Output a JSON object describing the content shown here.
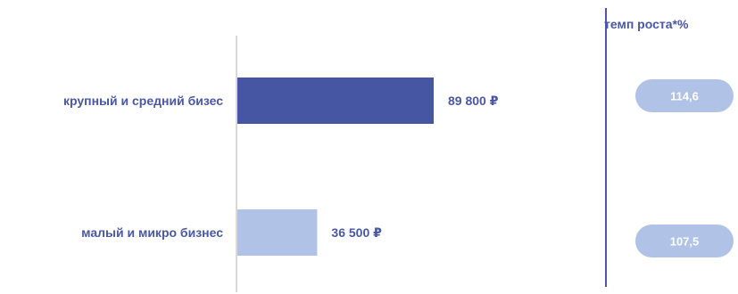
{
  "chart_data": {
    "type": "bar",
    "orientation": "horizontal",
    "categories": [
      "крупный и средний бизес",
      "малый и микро бизнес"
    ],
    "values": [
      89800,
      36500
    ],
    "value_labels": [
      "89 800 ₽",
      "36 500 ₽"
    ],
    "xlim": [
      0,
      100000
    ],
    "grid": false,
    "growth": {
      "header": "темп роста*%",
      "values": [
        "114,6",
        "107,5"
      ]
    }
  },
  "colors": {
    "text": "#4a57a2",
    "bar_large": "#4656a2",
    "bar_small": "#b0c3e6",
    "pill": "#b0c3e6",
    "pill_text": "#ffffff",
    "axis": "#d9d9d9",
    "divider": "#4a57a2"
  }
}
